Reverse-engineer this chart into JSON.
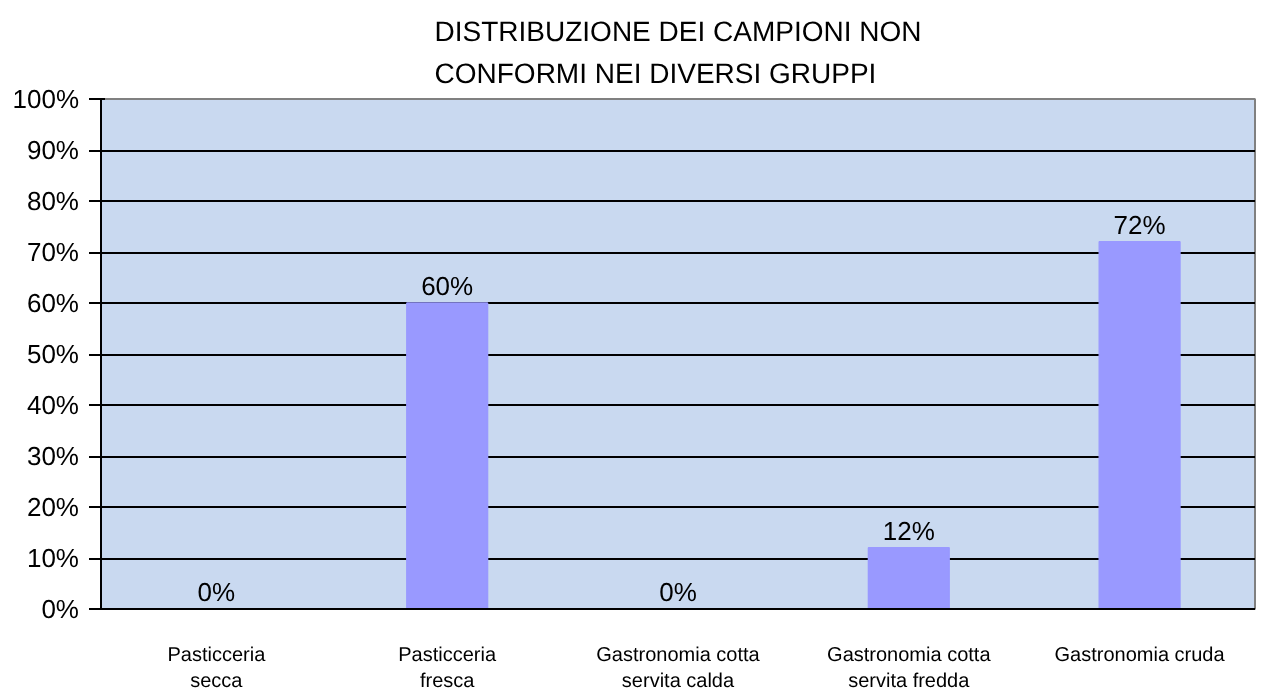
{
  "chart_data": {
    "type": "bar",
    "title": "DISTRIBUZIONE DEI CAMPIONI NON\nCONFORMI NEI DIVERSI GRUPPI",
    "categories": [
      "Pasticceria\nsecca",
      "Pasticceria\nfresca",
      "Gastronomia cotta\nservita calda",
      "Gastronomia cotta\nservita fredda",
      "Gastronomia cruda"
    ],
    "values": [
      0,
      60,
      0,
      12,
      72
    ],
    "color": "#9999ff",
    "ylim": [
      0,
      100
    ],
    "yticks": [
      {
        "value": 0,
        "label": "0%"
      },
      {
        "value": 10,
        "label": "10%"
      },
      {
        "value": 20,
        "label": "20%"
      },
      {
        "value": 30,
        "label": "30%"
      },
      {
        "value": 40,
        "label": "40%"
      },
      {
        "value": 50,
        "label": "50%"
      },
      {
        "value": 60,
        "label": "60%"
      },
      {
        "value": 70,
        "label": "70%"
      },
      {
        "value": 80,
        "label": "80%"
      },
      {
        "value": 90,
        "label": "90%"
      },
      {
        "value": 100,
        "label": "100%"
      }
    ],
    "value_labels": [
      "0%",
      "60%",
      "0%",
      "12%",
      "72%"
    ],
    "grid": "y"
  }
}
